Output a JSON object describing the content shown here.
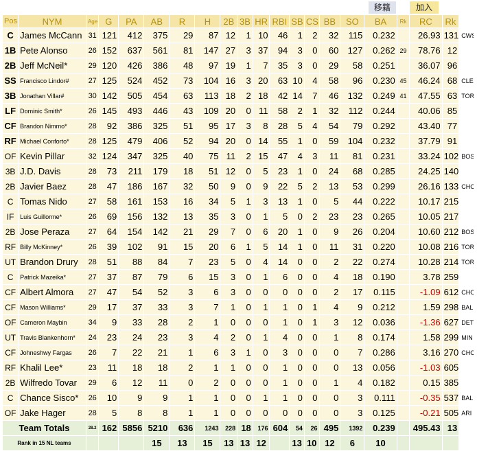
{
  "tabs": {
    "move": "移籍",
    "join": "加入"
  },
  "headers": [
    "Pos",
    "NYM",
    "Age",
    "G",
    "PA",
    "AB",
    "R",
    "H",
    "2B",
    "3B",
    "HR",
    "RBI",
    "SB",
    "CS",
    "BB",
    "SO",
    "BA",
    "Rk",
    "RC",
    "Rk"
  ],
  "players": [
    {
      "pos": "C",
      "name": "James McCann",
      "bold": true,
      "small": false,
      "age": "31",
      "g": "121",
      "pa": "412",
      "ab": "375",
      "r": "29",
      "h": "87",
      "d": "12",
      "t": "1",
      "hr": "10",
      "rbi": "46",
      "sb": "1",
      "cs": "2",
      "bb": "32",
      "so": "115",
      "ba": "0.232",
      "rk": "",
      "rc": "26.93",
      "rk2": "131",
      "team": "CWS",
      "neg": false
    },
    {
      "pos": "1B",
      "name": "Pete Alonso",
      "bold": true,
      "small": false,
      "age": "26",
      "g": "152",
      "pa": "637",
      "ab": "561",
      "r": "81",
      "h": "147",
      "d": "27",
      "t": "3",
      "hr": "37",
      "rbi": "94",
      "sb": "3",
      "cs": "0",
      "bb": "60",
      "so": "127",
      "ba": "0.262",
      "rk": "29",
      "rc": "78.76",
      "rk2": "12",
      "team": "",
      "neg": false
    },
    {
      "pos": "2B",
      "name": "Jeff McNeil*",
      "bold": true,
      "small": false,
      "age": "29",
      "g": "120",
      "pa": "426",
      "ab": "386",
      "r": "48",
      "h": "97",
      "d": "19",
      "t": "1",
      "hr": "7",
      "rbi": "35",
      "sb": "3",
      "cs": "0",
      "bb": "29",
      "so": "58",
      "ba": "0.251",
      "rk": "",
      "rc": "36.07",
      "rk2": "96",
      "team": "",
      "neg": false
    },
    {
      "pos": "SS",
      "name": "Francisco Lindor#",
      "bold": true,
      "small": true,
      "age": "27",
      "g": "125",
      "pa": "524",
      "ab": "452",
      "r": "73",
      "h": "104",
      "d": "16",
      "t": "3",
      "hr": "20",
      "rbi": "63",
      "sb": "10",
      "cs": "4",
      "bb": "58",
      "so": "96",
      "ba": "0.230",
      "rk": "45",
      "rc": "46.24",
      "rk2": "68",
      "team": "CLE",
      "neg": false
    },
    {
      "pos": "3B",
      "name": "Jonathan Villar#",
      "bold": true,
      "small": true,
      "age": "30",
      "g": "142",
      "pa": "505",
      "ab": "454",
      "r": "63",
      "h": "113",
      "d": "18",
      "t": "2",
      "hr": "18",
      "rbi": "42",
      "sb": "14",
      "cs": "7",
      "bb": "46",
      "so": "132",
      "ba": "0.249",
      "rk": "41",
      "rc": "47.55",
      "rk2": "63",
      "team": "TOR",
      "neg": false
    },
    {
      "pos": "LF",
      "name": "Dominic Smith*",
      "bold": true,
      "small": true,
      "age": "26",
      "g": "145",
      "pa": "493",
      "ab": "446",
      "r": "43",
      "h": "109",
      "d": "20",
      "t": "0",
      "hr": "11",
      "rbi": "58",
      "sb": "2",
      "cs": "1",
      "bb": "32",
      "so": "112",
      "ba": "0.244",
      "rk": "",
      "rc": "40.06",
      "rk2": "85",
      "team": "",
      "neg": false
    },
    {
      "pos": "CF",
      "name": "Brandon Nimmo*",
      "bold": true,
      "small": true,
      "age": "28",
      "g": "92",
      "pa": "386",
      "ab": "325",
      "r": "51",
      "h": "95",
      "d": "17",
      "t": "3",
      "hr": "8",
      "rbi": "28",
      "sb": "5",
      "cs": "4",
      "bb": "54",
      "so": "79",
      "ba": "0.292",
      "rk": "",
      "rc": "43.40",
      "rk2": "77",
      "team": "",
      "neg": false
    },
    {
      "pos": "RF",
      "name": "Michael Conforto*",
      "bold": true,
      "small": true,
      "age": "28",
      "g": "125",
      "pa": "479",
      "ab": "406",
      "r": "52",
      "h": "94",
      "d": "20",
      "t": "0",
      "hr": "14",
      "rbi": "55",
      "sb": "1",
      "cs": "0",
      "bb": "59",
      "so": "104",
      "ba": "0.232",
      "rk": "",
      "rc": "37.79",
      "rk2": "91",
      "team": "",
      "neg": false
    },
    {
      "pos": "OF",
      "name": "Kevin Pillar",
      "bold": false,
      "small": false,
      "age": "32",
      "g": "124",
      "pa": "347",
      "ab": "325",
      "r": "40",
      "h": "75",
      "d": "11",
      "t": "2",
      "hr": "15",
      "rbi": "47",
      "sb": "4",
      "cs": "3",
      "bb": "11",
      "so": "81",
      "ba": "0.231",
      "rk": "",
      "rc": "33.24",
      "rk2": "102",
      "team": "BOS",
      "neg": false
    },
    {
      "pos": "3B",
      "name": "J.D. Davis",
      "bold": false,
      "small": false,
      "age": "28",
      "g": "73",
      "pa": "211",
      "ab": "179",
      "r": "18",
      "h": "51",
      "d": "12",
      "t": "0",
      "hr": "5",
      "rbi": "23",
      "sb": "1",
      "cs": "0",
      "bb": "24",
      "so": "68",
      "ba": "0.285",
      "rk": "",
      "rc": "24.25",
      "rk2": "140",
      "team": "",
      "neg": false
    },
    {
      "pos": "2B",
      "name": "Javier Baez",
      "bold": false,
      "small": false,
      "age": "28",
      "g": "47",
      "pa": "186",
      "ab": "167",
      "r": "32",
      "h": "50",
      "d": "9",
      "t": "0",
      "hr": "9",
      "rbi": "22",
      "sb": "5",
      "cs": "2",
      "bb": "13",
      "so": "53",
      "ba": "0.299",
      "rk": "",
      "rc": "26.16",
      "rk2": "133",
      "team": "CHC",
      "neg": false
    },
    {
      "pos": "C",
      "name": "Tomas Nido",
      "bold": false,
      "small": false,
      "age": "27",
      "g": "58",
      "pa": "161",
      "ab": "153",
      "r": "16",
      "h": "34",
      "d": "5",
      "t": "1",
      "hr": "3",
      "rbi": "13",
      "sb": "1",
      "cs": "0",
      "bb": "5",
      "so": "44",
      "ba": "0.222",
      "rk": "",
      "rc": "10.17",
      "rk2": "215",
      "team": "",
      "neg": false
    },
    {
      "pos": "IF",
      "name": "Luis Guillorme*",
      "bold": false,
      "small": true,
      "age": "26",
      "g": "69",
      "pa": "156",
      "ab": "132",
      "r": "13",
      "h": "35",
      "d": "3",
      "t": "0",
      "hr": "1",
      "rbi": "5",
      "sb": "0",
      "cs": "2",
      "bb": "23",
      "so": "23",
      "ba": "0.265",
      "rk": "",
      "rc": "10.05",
      "rk2": "217",
      "team": "",
      "neg": false
    },
    {
      "pos": "2B",
      "name": "Jose Peraza",
      "bold": false,
      "small": false,
      "age": "27",
      "g": "64",
      "pa": "154",
      "ab": "142",
      "r": "21",
      "h": "29",
      "d": "7",
      "t": "0",
      "hr": "6",
      "rbi": "20",
      "sb": "1",
      "cs": "0",
      "bb": "9",
      "so": "26",
      "ba": "0.204",
      "rk": "",
      "rc": "10.60",
      "rk2": "212",
      "team": "BOS",
      "neg": false
    },
    {
      "pos": "RF",
      "name": "Billy McKinney*",
      "bold": false,
      "small": true,
      "age": "26",
      "g": "39",
      "pa": "102",
      "ab": "91",
      "r": "15",
      "h": "20",
      "d": "6",
      "t": "1",
      "hr": "5",
      "rbi": "14",
      "sb": "1",
      "cs": "0",
      "bb": "11",
      "so": "31",
      "ba": "0.220",
      "rk": "",
      "rc": "10.08",
      "rk2": "216",
      "team": "TOR",
      "neg": false
    },
    {
      "pos": "UT",
      "name": "Brandon Drury",
      "bold": false,
      "small": false,
      "age": "28",
      "g": "51",
      "pa": "88",
      "ab": "84",
      "r": "7",
      "h": "23",
      "d": "5",
      "t": "0",
      "hr": "4",
      "rbi": "14",
      "sb": "0",
      "cs": "0",
      "bb": "2",
      "so": "22",
      "ba": "0.274",
      "rk": "",
      "rc": "10.28",
      "rk2": "214",
      "team": "TOR",
      "neg": false
    },
    {
      "pos": "C",
      "name": "Patrick Mazeika*",
      "bold": false,
      "small": true,
      "age": "27",
      "g": "37",
      "pa": "87",
      "ab": "79",
      "r": "6",
      "h": "15",
      "d": "3",
      "t": "0",
      "hr": "1",
      "rbi": "6",
      "sb": "0",
      "cs": "0",
      "bb": "4",
      "so": "18",
      "ba": "0.190",
      "rk": "",
      "rc": "3.78",
      "rk2": "259",
      "team": "",
      "neg": false
    },
    {
      "pos": "CF",
      "name": "Albert Almora",
      "bold": false,
      "small": false,
      "age": "27",
      "g": "47",
      "pa": "54",
      "ab": "52",
      "r": "3",
      "h": "6",
      "d": "3",
      "t": "0",
      "hr": "0",
      "rbi": "0",
      "sb": "0",
      "cs": "0",
      "bb": "2",
      "so": "17",
      "ba": "0.115",
      "rk": "",
      "rc": "-1.09",
      "rk2": "612",
      "team": "CHC",
      "neg": true
    },
    {
      "pos": "CF",
      "name": "Mason Williams*",
      "bold": false,
      "small": true,
      "age": "29",
      "g": "17",
      "pa": "37",
      "ab": "33",
      "r": "3",
      "h": "7",
      "d": "1",
      "t": "0",
      "hr": "1",
      "rbi": "1",
      "sb": "0",
      "cs": "1",
      "bb": "4",
      "so": "9",
      "ba": "0.212",
      "rk": "",
      "rc": "1.59",
      "rk2": "298",
      "team": "BAL",
      "neg": false
    },
    {
      "pos": "OF",
      "name": "Cameron Maybin",
      "bold": false,
      "small": true,
      "age": "34",
      "g": "9",
      "pa": "33",
      "ab": "28",
      "r": "2",
      "h": "1",
      "d": "0",
      "t": "0",
      "hr": "0",
      "rbi": "1",
      "sb": "0",
      "cs": "1",
      "bb": "3",
      "so": "12",
      "ba": "0.036",
      "rk": "",
      "rc": "-1.36",
      "rk2": "627",
      "team": "DET",
      "neg": true
    },
    {
      "pos": "UT",
      "name": "Travis Blankenhorn*",
      "bold": false,
      "small": true,
      "age": "24",
      "g": "23",
      "pa": "24",
      "ab": "23",
      "r": "3",
      "h": "4",
      "d": "2",
      "t": "0",
      "hr": "1",
      "rbi": "4",
      "sb": "0",
      "cs": "0",
      "bb": "1",
      "so": "8",
      "ba": "0.174",
      "rk": "",
      "rc": "1.58",
      "rk2": "299",
      "team": "MIN",
      "neg": false
    },
    {
      "pos": "CF",
      "name": "Johneshwy Fargas",
      "bold": false,
      "small": true,
      "age": "26",
      "g": "7",
      "pa": "22",
      "ab": "21",
      "r": "1",
      "h": "6",
      "d": "3",
      "t": "1",
      "hr": "0",
      "rbi": "3",
      "sb": "0",
      "cs": "0",
      "bb": "0",
      "so": "7",
      "ba": "0.286",
      "rk": "",
      "rc": "3.16",
      "rk2": "270",
      "team": "CHC",
      "neg": false
    },
    {
      "pos": "RF",
      "name": "Khalil Lee*",
      "bold": false,
      "small": false,
      "age": "23",
      "g": "11",
      "pa": "18",
      "ab": "18",
      "r": "2",
      "h": "1",
      "d": "1",
      "t": "0",
      "hr": "0",
      "rbi": "1",
      "sb": "0",
      "cs": "0",
      "bb": "0",
      "so": "13",
      "ba": "0.056",
      "rk": "",
      "rc": "-1.03",
      "rk2": "605",
      "team": "",
      "neg": true
    },
    {
      "pos": "2B",
      "name": "Wilfredo Tovar",
      "bold": false,
      "small": false,
      "age": "29",
      "g": "6",
      "pa": "12",
      "ab": "11",
      "r": "0",
      "h": "2",
      "d": "0",
      "t": "0",
      "hr": "0",
      "rbi": "1",
      "sb": "0",
      "cs": "0",
      "bb": "1",
      "so": "4",
      "ba": "0.182",
      "rk": "",
      "rc": "0.15",
      "rk2": "385",
      "team": "",
      "neg": false
    },
    {
      "pos": "C",
      "name": "Chance Sisco*",
      "bold": false,
      "small": false,
      "age": "26",
      "g": "10",
      "pa": "9",
      "ab": "9",
      "r": "1",
      "h": "1",
      "d": "0",
      "t": "0",
      "hr": "1",
      "rbi": "1",
      "sb": "0",
      "cs": "0",
      "bb": "0",
      "so": "3",
      "ba": "0.111",
      "rk": "",
      "rc": "-0.35",
      "rk2": "537",
      "team": "BAL",
      "neg": true
    },
    {
      "pos": "OF",
      "name": "Jake Hager",
      "bold": false,
      "small": false,
      "age": "28",
      "g": "5",
      "pa": "8",
      "ab": "8",
      "r": "1",
      "h": "1",
      "d": "0",
      "t": "0",
      "hr": "0",
      "rbi": "0",
      "sb": "0",
      "cs": "0",
      "bb": "0",
      "so": "3",
      "ba": "0.125",
      "rk": "",
      "rc": "-0.21",
      "rk2": "505",
      "team": "ARI",
      "neg": true
    }
  ],
  "totals": {
    "label": "Team Totals",
    "age": "28.2",
    "g": "162",
    "pa": "5856",
    "ab": "5210",
    "r": "636",
    "h": "1243",
    "d": "228",
    "t": "18",
    "hr": "176",
    "rbi": "604",
    "sb": "54",
    "cs": "26",
    "bb": "495",
    "so": "1392",
    "ba": "0.239",
    "rc": "495.43",
    "rk2": "13"
  },
  "ranks": {
    "label": "Rank in 15 NL teams",
    "ab": "15",
    "r": "13",
    "h": "15",
    "d": "13",
    "t": "13",
    "hr": "12",
    "sb": "13",
    "cs": "10",
    "bb": "12",
    "so": "6",
    "ba": "10"
  }
}
